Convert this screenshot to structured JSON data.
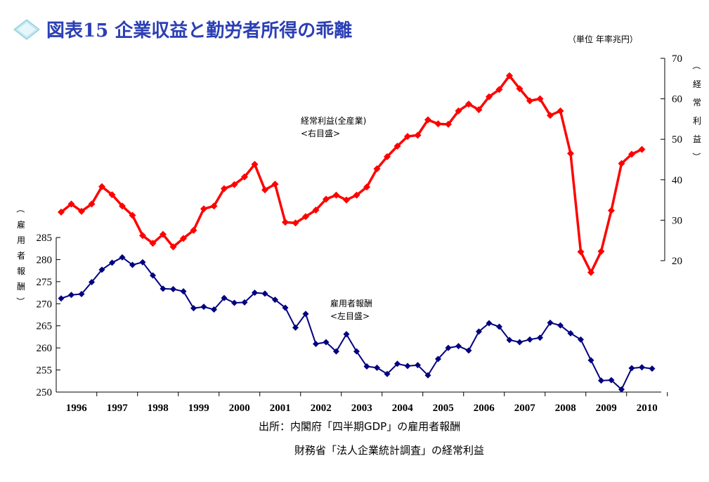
{
  "header": {
    "title": "図表15 企業収益と勤労者所得の乖離",
    "unit": "（単位 年率兆円）"
  },
  "source": {
    "line1": "出所：内閣府「四半期GDP」の雇用者報酬",
    "line2": "財務省「法人企業統計調査」の経常利益"
  },
  "colors": {
    "profit": "#ff0000",
    "compensation": "#000080",
    "title": "#2b3fb5",
    "diamond": "#9fd8e8"
  },
  "chart_data": {
    "type": "line",
    "x": [
      "1996Q1",
      "1996Q2",
      "1996Q3",
      "1996Q4",
      "1997Q1",
      "1997Q2",
      "1997Q3",
      "1997Q4",
      "1998Q1",
      "1998Q2",
      "1998Q3",
      "1998Q4",
      "1999Q1",
      "1999Q2",
      "1999Q3",
      "1999Q4",
      "2000Q1",
      "2000Q2",
      "2000Q3",
      "2000Q4",
      "2001Q1",
      "2001Q2",
      "2001Q3",
      "2001Q4",
      "2002Q1",
      "2002Q2",
      "2002Q3",
      "2002Q4",
      "2003Q1",
      "2003Q2",
      "2003Q3",
      "2003Q4",
      "2004Q1",
      "2004Q2",
      "2004Q3",
      "2004Q4",
      "2005Q1",
      "2005Q2",
      "2005Q3",
      "2005Q4",
      "2006Q1",
      "2006Q2",
      "2006Q3",
      "2006Q4",
      "2007Q1",
      "2007Q2",
      "2007Q3",
      "2007Q4",
      "2008Q1",
      "2008Q2",
      "2008Q3",
      "2008Q4",
      "2009Q1",
      "2009Q2",
      "2009Q3",
      "2009Q4",
      "2010Q1",
      "2010Q2",
      "2010Q3",
      "2010Q4"
    ],
    "xticklabels": [
      "1996",
      "1997",
      "1998",
      "1999",
      "2000",
      "2001",
      "2002",
      "2003",
      "2004",
      "2005",
      "2006",
      "2007",
      "2008",
      "2009",
      "2010"
    ],
    "series": [
      {
        "name": "経常利益(全産業)",
        "annotation_sub": "<右目盛>",
        "axis": "right",
        "values": [
          32.0,
          34.0,
          32.2,
          34.0,
          38.3,
          36.3,
          33.5,
          31.2,
          26.2,
          24.3,
          26.5,
          23.4,
          25.5,
          27.5,
          32.8,
          33.5,
          37.8,
          38.8,
          40.7,
          43.8,
          37.5,
          38.9,
          29.5,
          29.3,
          30.9,
          32.5,
          35.2,
          36.2,
          35.0,
          36.2,
          38.2,
          42.7,
          45.7,
          48.3,
          50.7,
          51.0,
          54.8,
          53.8,
          53.7,
          57.0,
          58.7,
          57.3,
          60.5,
          62.3,
          65.7,
          62.5,
          59.5,
          60.0,
          55.9,
          57.0,
          46.5,
          22.2,
          17.1,
          22.3,
          32.4,
          44.0,
          46.3,
          47.5,
          null,
          null
        ]
      },
      {
        "name": "雇用者報酬",
        "annotation_sub": "<左目盛>",
        "axis": "left",
        "values": [
          271.2,
          272.0,
          272.2,
          274.9,
          277.7,
          279.3,
          280.5,
          278.8,
          279.4,
          276.4,
          273.4,
          273.3,
          272.8,
          269.0,
          269.3,
          268.7,
          271.3,
          270.2,
          270.3,
          272.5,
          272.3,
          270.9,
          269.1,
          264.6,
          267.7,
          260.9,
          261.3,
          259.2,
          263.1,
          259.2,
          255.8,
          255.5,
          254.1,
          256.4,
          255.9,
          256.1,
          253.8,
          257.5,
          260.0,
          260.4,
          259.4,
          263.7,
          265.6,
          264.8,
          261.8,
          261.3,
          261.9,
          262.3,
          265.7,
          265.1,
          263.3,
          261.9,
          257.2,
          252.6,
          252.7,
          250.6,
          255.4,
          255.6,
          255.3,
          null
        ]
      }
    ],
    "left_axis": {
      "ylabel": "（雇用者報酬）",
      "ylim": [
        250,
        285
      ],
      "ticks": [
        250,
        255,
        260,
        265,
        270,
        275,
        280,
        285
      ]
    },
    "right_axis": {
      "ylabel": "（経常利益）",
      "ylim": [
        20,
        70
      ],
      "ticks": [
        20,
        30,
        40,
        50,
        60,
        70
      ]
    },
    "grid": false
  }
}
